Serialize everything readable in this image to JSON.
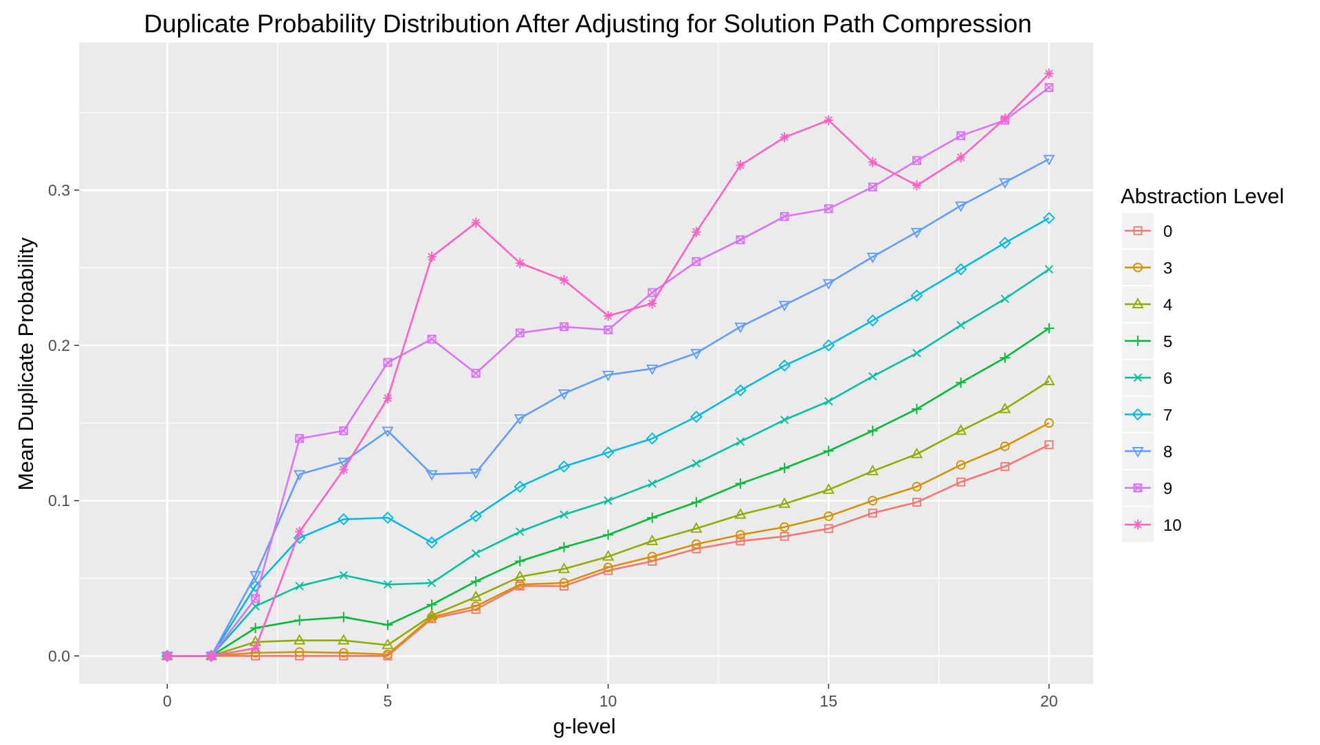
{
  "chart_data": {
    "type": "line",
    "title": "Duplicate Probability Distribution After Adjusting for Solution Path Compression",
    "xlabel": "g-level",
    "ylabel": "Mean Duplicate Probability",
    "xlim": [
      -2,
      21
    ],
    "ylim": [
      -0.018,
      0.395
    ],
    "x_ticks": [
      0,
      5,
      10,
      15,
      20
    ],
    "x_tick_labels": [
      "0",
      "5",
      "10",
      "15",
      "20"
    ],
    "y_ticks": [
      0.0,
      0.1,
      0.2,
      0.3
    ],
    "y_tick_labels": [
      "0.0",
      "0.1",
      "0.2",
      "0.3"
    ],
    "grid": true,
    "legend_title": "Abstraction Level",
    "legend_position": "right",
    "x": [
      0,
      1,
      2,
      3,
      4,
      5,
      6,
      7,
      8,
      9,
      10,
      11,
      12,
      13,
      14,
      15,
      16,
      17,
      18,
      19,
      20
    ],
    "series": [
      {
        "name": "0",
        "color": "#F8766D",
        "marker": "square-open",
        "values": [
          0,
          0,
          0,
          0,
          0,
          0,
          0.024,
          0.03,
          0.045,
          0.045,
          0.055,
          0.061,
          0.069,
          0.074,
          0.077,
          0.082,
          0.092,
          0.099,
          0.112,
          0.122,
          0.136
        ]
      },
      {
        "name": "3",
        "color": "#D39200",
        "marker": "circle-open",
        "values": [
          0,
          0,
          0.002,
          0.0025,
          0.002,
          0.001,
          0.025,
          0.032,
          0.046,
          0.047,
          0.057,
          0.064,
          0.072,
          0.078,
          0.083,
          0.09,
          0.1,
          0.109,
          0.123,
          0.135,
          0.15
        ]
      },
      {
        "name": "4",
        "color": "#93AA00",
        "marker": "triangle-open",
        "values": [
          0,
          0,
          0.009,
          0.01,
          0.01,
          0.007,
          0.026,
          0.038,
          0.051,
          0.056,
          0.064,
          0.074,
          0.082,
          0.091,
          0.098,
          0.107,
          0.119,
          0.13,
          0.145,
          0.159,
          0.177
        ]
      },
      {
        "name": "5",
        "color": "#00BA38",
        "marker": "plus",
        "values": [
          0,
          0,
          0.018,
          0.023,
          0.025,
          0.02,
          0.033,
          0.048,
          0.061,
          0.07,
          0.078,
          0.089,
          0.099,
          0.111,
          0.121,
          0.132,
          0.145,
          0.159,
          0.176,
          0.192,
          0.211
        ]
      },
      {
        "name": "6",
        "color": "#00C19F",
        "marker": "cross",
        "values": [
          0,
          0,
          0.032,
          0.045,
          0.052,
          0.046,
          0.047,
          0.066,
          0.08,
          0.091,
          0.1,
          0.111,
          0.124,
          0.138,
          0.152,
          0.164,
          0.18,
          0.195,
          0.213,
          0.23,
          0.249
        ]
      },
      {
        "name": "7",
        "color": "#00B9E3",
        "marker": "diamond-open",
        "values": [
          0,
          0,
          0.045,
          0.076,
          0.088,
          0.089,
          0.073,
          0.09,
          0.109,
          0.122,
          0.131,
          0.14,
          0.154,
          0.171,
          0.187,
          0.2,
          0.216,
          0.232,
          0.249,
          0.266,
          0.282
        ]
      },
      {
        "name": "8",
        "color": "#619CFF",
        "marker": "triangle-down-open",
        "values": [
          0,
          0,
          0.052,
          0.117,
          0.125,
          0.145,
          0.117,
          0.118,
          0.153,
          0.169,
          0.181,
          0.185,
          0.195,
          0.212,
          0.226,
          0.24,
          0.257,
          0.273,
          0.29,
          0.305,
          0.32
        ]
      },
      {
        "name": "9",
        "color": "#DB72FB",
        "marker": "square-cross",
        "values": [
          0,
          0,
          0.037,
          0.14,
          0.145,
          0.189,
          0.204,
          0.182,
          0.208,
          0.212,
          0.21,
          0.234,
          0.254,
          0.268,
          0.283,
          0.288,
          0.302,
          0.319,
          0.335,
          0.345,
          0.366
        ]
      },
      {
        "name": "10",
        "color": "#FF61C3",
        "marker": "asterisk",
        "values": [
          0,
          0,
          0.005,
          0.08,
          0.12,
          0.166,
          0.257,
          0.279,
          0.253,
          0.242,
          0.219,
          0.227,
          0.273,
          0.316,
          0.334,
          0.345,
          0.318,
          0.303,
          0.321,
          0.346,
          0.375
        ]
      }
    ]
  }
}
